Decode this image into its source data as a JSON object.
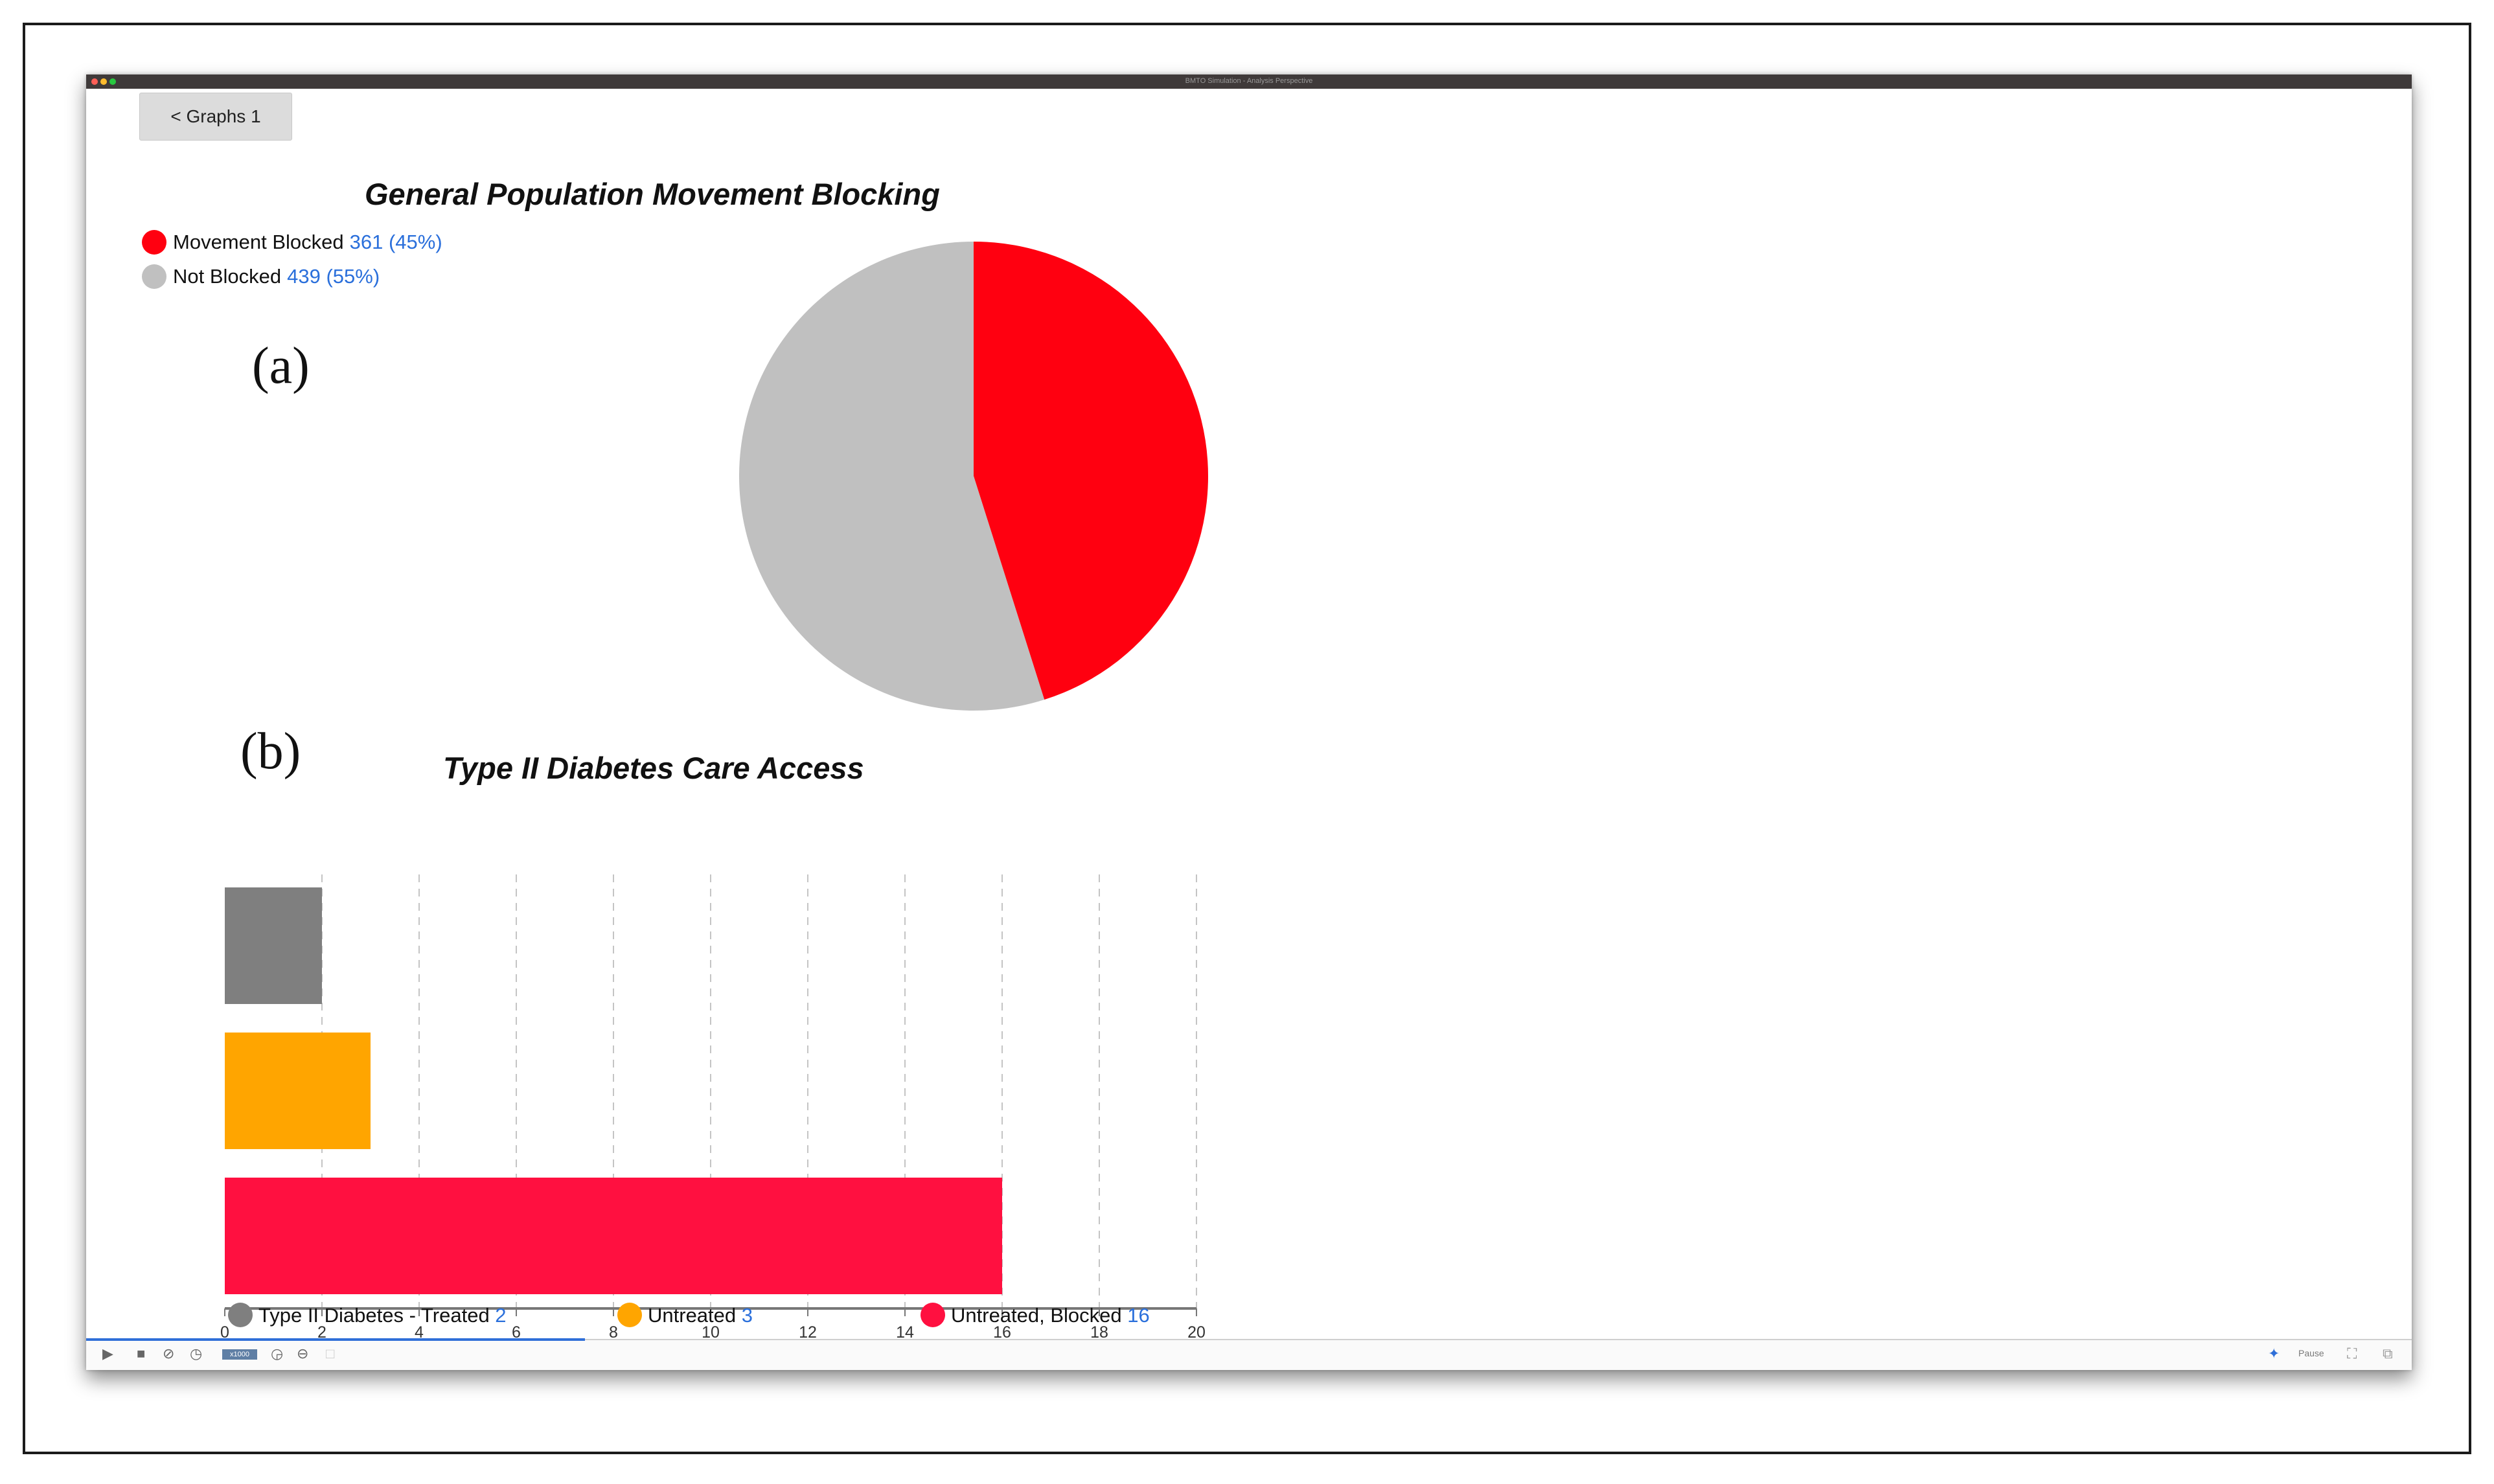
{
  "window": {
    "title": "BMTO Simulation - Analysis Perspective",
    "back_button": "< Graphs 1"
  },
  "panel_labels": {
    "a": "(a)",
    "b": "(b)"
  },
  "chart_data": [
    {
      "type": "pie",
      "title": "General Population Movement Blocking",
      "slices": [
        {
          "label": "Movement Blocked",
          "value": 361,
          "display": "361 (45%)",
          "color": "#ff0010"
        },
        {
          "label": "Not Blocked",
          "value": 439,
          "display": "439 (55%)",
          "color": "#c0c0c0"
        }
      ],
      "legend_position": "top-left"
    },
    {
      "type": "bar",
      "orientation": "horizontal",
      "title": "Type II Diabetes Care Access",
      "categories": [
        "Type II Diabetes - Treated",
        "Untreated",
        "Untreated, Blocked"
      ],
      "values": [
        2,
        3,
        16
      ],
      "colors": [
        "#7f7f7f",
        "#ffa500",
        "#ff1040"
      ],
      "xlim": [
        0,
        20
      ],
      "xticks": [
        "0",
        "2",
        "4",
        "6",
        "8",
        "10",
        "12",
        "14",
        "16",
        "18",
        "20"
      ],
      "grid": "vertical dashed",
      "legend_position": "bottom"
    }
  ],
  "toolbar": {
    "speed_label": "x1000",
    "play_icon": "play-icon",
    "stop_icon": "stop-icon",
    "right_label": "Pause"
  }
}
